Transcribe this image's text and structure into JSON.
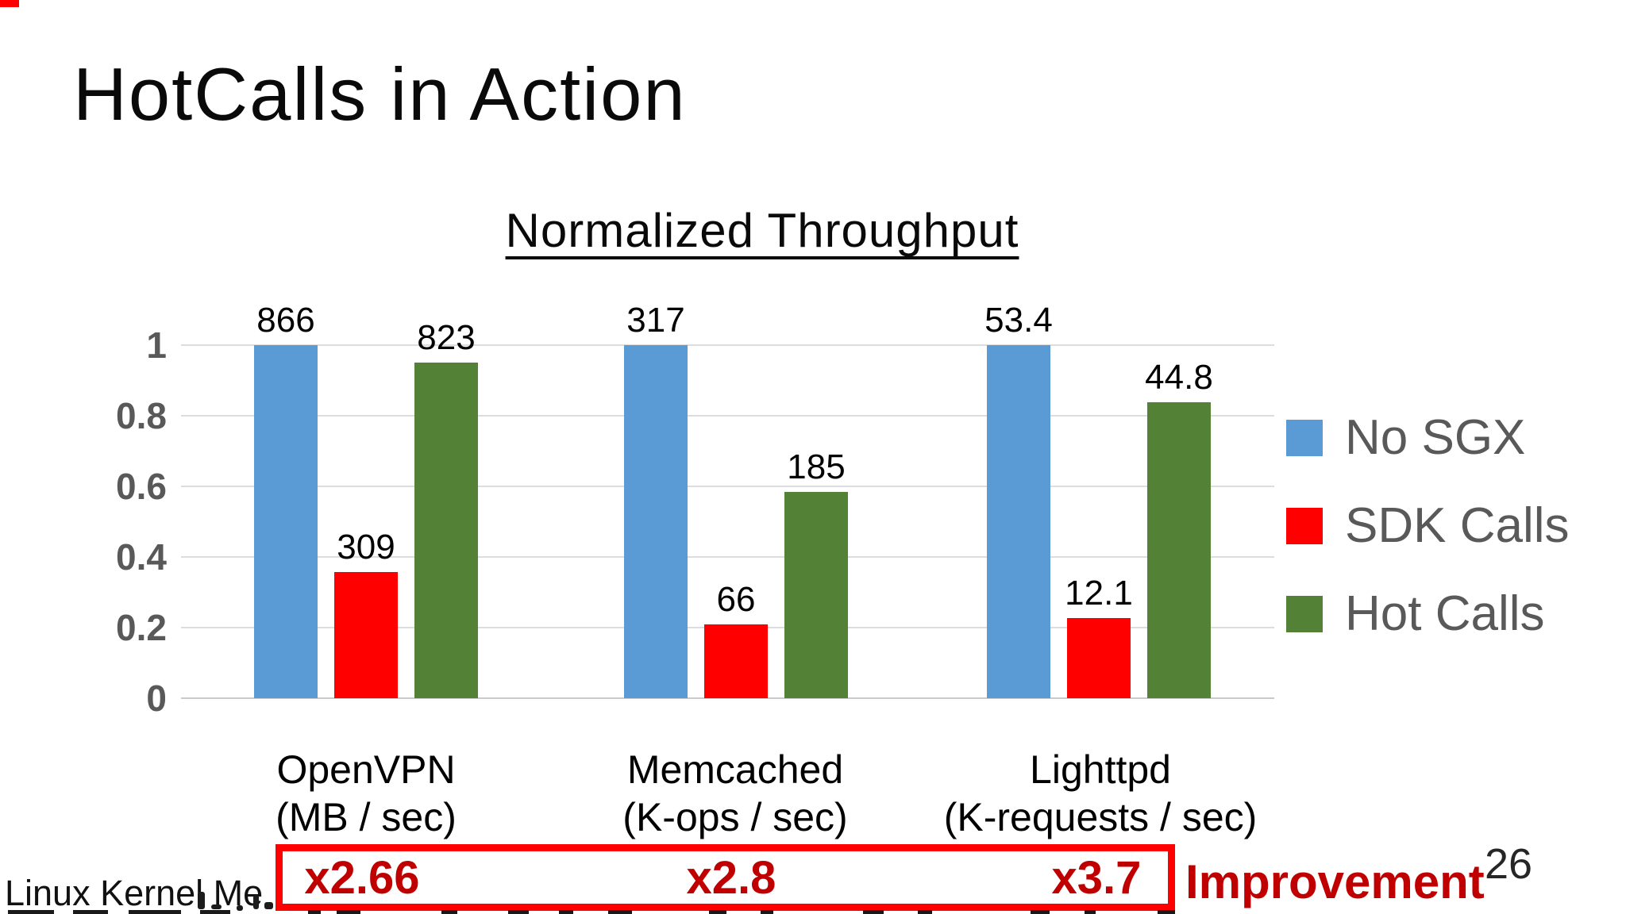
{
  "slide": {
    "title": "HotCalls in Action",
    "page_number": "26",
    "footer_text": "Linux Kernel Me",
    "improvement_label": "Improvement"
  },
  "chart_data": {
    "type": "bar",
    "title": "Normalized Throughput",
    "categories": [
      {
        "name": "OpenVPN",
        "unit": "(MB / sec)"
      },
      {
        "name": "Memcached",
        "unit": "(K-ops / sec)"
      },
      {
        "name": "Lighttpd",
        "unit": "(K-requests / sec)"
      }
    ],
    "series": [
      {
        "name": "No SGX",
        "color": "#5B9BD5",
        "values": [
          866,
          317,
          53.4
        ],
        "labels": [
          "866",
          "317",
          "53.4"
        ]
      },
      {
        "name": "SDK Calls",
        "color": "#FF0000",
        "values": [
          309,
          66,
          12.1
        ],
        "labels": [
          "309",
          "66",
          "12.1"
        ]
      },
      {
        "name": "Hot Calls",
        "color": "#538135",
        "values": [
          823,
          185,
          44.8
        ],
        "labels": [
          "823",
          "185",
          "44.8"
        ]
      }
    ],
    "normalization": "each group normalized to its No SGX value",
    "improvements": [
      "x2.66",
      "x2.8",
      "x3.7"
    ],
    "y_ticks": [
      "1",
      "0.8",
      "0.6",
      "0.4",
      "0.2",
      "0"
    ],
    "ylim": [
      0,
      1
    ],
    "grid": true,
    "legend_position": "right",
    "accent_colors": {
      "improvement_text": "#C00000",
      "box_border": "#FF0000",
      "axis_text": "#595959",
      "gridline": "#D9D9D9"
    }
  }
}
